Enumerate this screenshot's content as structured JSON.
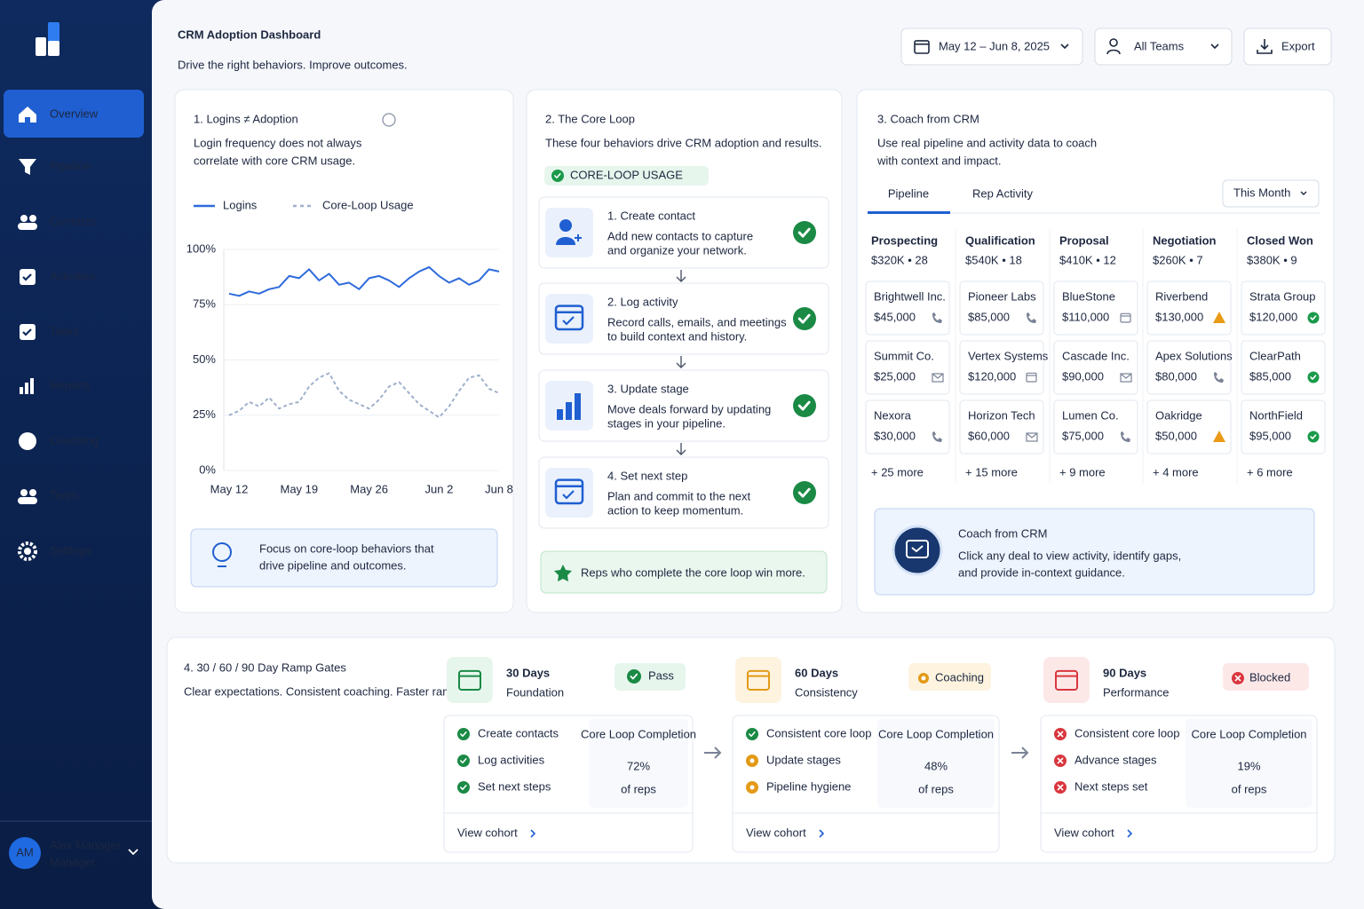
{
  "sidebar": {
    "nav": [
      "Overview",
      "Pipeline",
      "Contacts",
      "Activities",
      "Tasks",
      "Reports",
      "Coaching",
      "Team",
      "Settings"
    ],
    "user": {
      "initials": "AM",
      "name": "Alex Manager",
      "role": "Manager"
    }
  },
  "header": {
    "title": "CRM Adoption Dashboard",
    "subtitle": "Drive the right behaviors. Improve outcomes.",
    "date_range": "May 12 – Jun 8, 2025",
    "team_filter": "All Teams",
    "export": "Export"
  },
  "logins_card": {
    "title": "1. Logins ≠ Adoption",
    "description": [
      "Login frequency does not always",
      "correlate with core CRM usage."
    ],
    "callout": [
      "Focus on core-loop behaviors that",
      "drive pipeline and outcomes."
    ]
  },
  "chart_data": {
    "type": "line",
    "categories": [
      "May 12",
      null,
      null,
      null,
      null,
      null,
      null,
      "May 19",
      null,
      null,
      null,
      null,
      null,
      null,
      "May 26",
      null,
      null,
      null,
      null,
      null,
      null,
      "Jun 2",
      null,
      null,
      null,
      null,
      null,
      "Jun 8"
    ],
    "ylim": [
      0,
      100
    ],
    "yticks": [
      {
        "value": 0,
        "label": "0%"
      },
      {
        "value": 25,
        "label": "25%"
      },
      {
        "value": 50,
        "label": "50%"
      },
      {
        "value": 75,
        "label": "75%"
      },
      {
        "value": 100,
        "label": "100%"
      }
    ],
    "grid": true,
    "legend": "top",
    "series": [
      {
        "name": "Logins",
        "color": "#2f6bdc",
        "values": [
          80,
          79,
          81,
          80,
          82,
          83,
          88,
          87,
          91,
          86,
          89,
          84,
          85,
          82,
          87,
          88,
          86,
          83,
          87,
          90,
          92,
          88,
          85,
          87,
          84,
          86,
          91,
          90
        ]
      },
      {
        "name": "Core-Loop Usage",
        "color": "#9fb0cc",
        "dash": true,
        "values": [
          25,
          27,
          31,
          29,
          33,
          28,
          30,
          31,
          38,
          42,
          44,
          36,
          32,
          30,
          28,
          32,
          38,
          40,
          35,
          30,
          27,
          24,
          29,
          36,
          42,
          43,
          37,
          35
        ]
      }
    ]
  },
  "core_loop_card": {
    "title": "2. The Core Loop",
    "description": "These four behaviors drive CRM adoption and results.",
    "badge": "CORE-LOOP USAGE",
    "steps": [
      {
        "title": "1. Create contact",
        "description": [
          "Add new contacts to capture",
          "and organize your network."
        ]
      },
      {
        "title": "2. Log activity",
        "description": [
          "Record calls, emails, and meetings",
          "to build context and history."
        ]
      },
      {
        "title": "3. Update stage",
        "description": [
          "Move deals forward by updating",
          "stages in your pipeline."
        ]
      },
      {
        "title": "4. Set next step",
        "description": [
          "Plan and commit to the next",
          "action to keep momentum."
        ]
      }
    ],
    "footer": "Reps who complete the core loop win more."
  },
  "coach_card": {
    "title": "3. Coach from CRM",
    "description": [
      "Use real pipeline and activity data to coach",
      "with context and impact."
    ],
    "tabs": [
      "Pipeline",
      "Rep Activity"
    ],
    "period": "This Month",
    "stages": [
      {
        "name": "Prospecting",
        "summary": "$320K • 28",
        "deals": [
          {
            "name": "Brightwell Inc.",
            "amount": "$45,000"
          },
          {
            "name": "Summit Co.",
            "amount": "$25,000"
          },
          {
            "name": "Nexora",
            "amount": "$30,000"
          }
        ],
        "more": "+ 25 more"
      },
      {
        "name": "Qualification",
        "summary": "$540K • 18",
        "deals": [
          {
            "name": "Pioneer Labs",
            "amount": "$85,000"
          },
          {
            "name": "Vertex Systems",
            "amount": "$120,000"
          },
          {
            "name": "Horizon Tech",
            "amount": "$60,000"
          }
        ],
        "more": "+ 15 more"
      },
      {
        "name": "Proposal",
        "summary": "$410K • 12",
        "deals": [
          {
            "name": "BlueStone",
            "amount": "$110,000"
          },
          {
            "name": "Cascade Inc.",
            "amount": "$90,000"
          },
          {
            "name": "Lumen Co.",
            "amount": "$75,000"
          }
        ],
        "more": "+ 9 more"
      },
      {
        "name": "Negotiation",
        "summary": "$260K • 7",
        "deals": [
          {
            "name": "Riverbend",
            "amount": "$130,000"
          },
          {
            "name": "Apex Solutions",
            "amount": "$80,000"
          },
          {
            "name": "Oakridge",
            "amount": "$50,000"
          }
        ],
        "more": "+ 4 more"
      },
      {
        "name": "Closed Won",
        "summary": "$380K • 9",
        "deals": [
          {
            "name": "Strata Group",
            "amount": "$120,000"
          },
          {
            "name": "ClearPath",
            "amount": "$85,000"
          },
          {
            "name": "NorthField",
            "amount": "$95,000"
          }
        ],
        "more": "+ 6 more"
      }
    ],
    "callout": {
      "title": "Coach from CRM",
      "text": [
        "Click any deal to view activity, identify gaps,",
        "and provide in-context guidance."
      ]
    }
  },
  "ramp_card": {
    "title": "4. 30 / 60 / 90 Day Ramp Gates",
    "description": "Clear expectations. Consistent coaching. Faster ramp.",
    "gates": [
      {
        "days": "30 Days",
        "label": "Foundation",
        "status": "Pass",
        "items": [
          "Create contacts",
          "Log activities",
          "Set next steps"
        ],
        "metric_label": "Core Loop Completion",
        "metric": "72%",
        "metric_sub": "of reps",
        "link": "View cohort"
      },
      {
        "days": "60 Days",
        "label": "Consistency",
        "status": "Coaching",
        "items": [
          "Consistent core loop",
          "Update stages",
          "Pipeline hygiene"
        ],
        "metric_label": "Core Loop Completion",
        "metric": "48%",
        "metric_sub": "of reps",
        "link": "View cohort"
      },
      {
        "days": "90 Days",
        "label": "Performance",
        "status": "Blocked",
        "items": [
          "Consistent core loop",
          "Advance stages",
          "Next steps set"
        ],
        "metric_label": "Core Loop Completion",
        "metric": "19%",
        "metric_sub": "of reps",
        "link": "View cohort"
      }
    ]
  }
}
